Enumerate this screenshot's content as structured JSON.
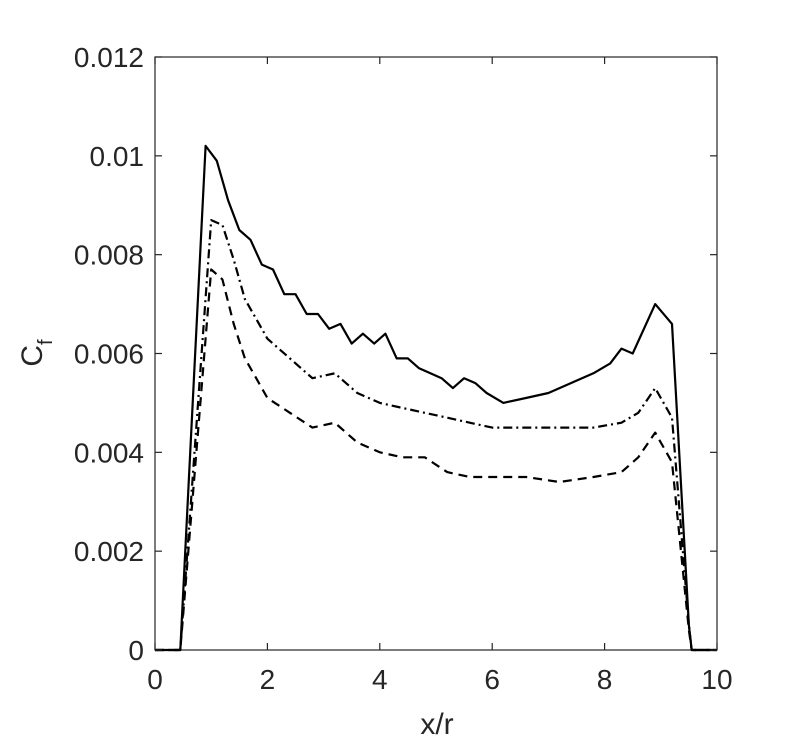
{
  "chart_data": {
    "type": "line",
    "xlabel": "x/r",
    "ylabel_main": "C",
    "ylabel_sub": "f",
    "xlim": [
      0,
      10
    ],
    "ylim": [
      0,
      0.012
    ],
    "x_ticks": [
      0,
      2,
      4,
      6,
      8,
      10
    ],
    "y_ticks": [
      0,
      0.002,
      0.004,
      0.006,
      0.008,
      0.01,
      0.012
    ],
    "x_tick_labels": [
      "0",
      "2",
      "4",
      "6",
      "8",
      "10"
    ],
    "y_tick_labels": [
      "0",
      "0.002",
      "0.004",
      "0.006",
      "0.008",
      "0.01",
      "0.012"
    ],
    "grid": false,
    "legend": "none",
    "series": [
      {
        "style": "solid",
        "color": "#000000",
        "points": [
          [
            0,
            0
          ],
          [
            0.45,
            0
          ],
          [
            0.9,
            0.0102
          ],
          [
            1.1,
            0.0099
          ],
          [
            1.3,
            0.0091
          ],
          [
            1.5,
            0.0085
          ],
          [
            1.7,
            0.0083
          ],
          [
            1.9,
            0.0078
          ],
          [
            2.1,
            0.0077
          ],
          [
            2.3,
            0.0072
          ],
          [
            2.5,
            0.0072
          ],
          [
            2.7,
            0.0068
          ],
          [
            2.9,
            0.0068
          ],
          [
            3.1,
            0.0065
          ],
          [
            3.3,
            0.0066
          ],
          [
            3.5,
            0.0062
          ],
          [
            3.7,
            0.0064
          ],
          [
            3.9,
            0.0062
          ],
          [
            4.1,
            0.0064
          ],
          [
            4.3,
            0.0059
          ],
          [
            4.5,
            0.0059
          ],
          [
            4.7,
            0.0057
          ],
          [
            4.9,
            0.0056
          ],
          [
            5.1,
            0.0055
          ],
          [
            5.3,
            0.0053
          ],
          [
            5.5,
            0.0055
          ],
          [
            5.7,
            0.0054
          ],
          [
            5.9,
            0.0052
          ],
          [
            6.2,
            0.005
          ],
          [
            6.6,
            0.0051
          ],
          [
            7.0,
            0.0052
          ],
          [
            7.4,
            0.0054
          ],
          [
            7.8,
            0.0056
          ],
          [
            8.1,
            0.0058
          ],
          [
            8.3,
            0.0061
          ],
          [
            8.5,
            0.006
          ],
          [
            8.9,
            0.007
          ],
          [
            9.2,
            0.0066
          ],
          [
            9.5,
            0.0005
          ],
          [
            9.55,
            0
          ],
          [
            10,
            0
          ]
        ]
      },
      {
        "style": "dashdot",
        "color": "#000000",
        "points": [
          [
            0,
            0
          ],
          [
            0.45,
            0
          ],
          [
            1.0,
            0.0087
          ],
          [
            1.2,
            0.0086
          ],
          [
            1.4,
            0.0079
          ],
          [
            1.6,
            0.0071
          ],
          [
            1.8,
            0.0067
          ],
          [
            2.0,
            0.0063
          ],
          [
            2.4,
            0.0059
          ],
          [
            2.8,
            0.0055
          ],
          [
            3.2,
            0.0056
          ],
          [
            3.6,
            0.0052
          ],
          [
            4.0,
            0.005
          ],
          [
            4.4,
            0.0049
          ],
          [
            4.8,
            0.0048
          ],
          [
            5.2,
            0.0047
          ],
          [
            5.6,
            0.0046
          ],
          [
            6.0,
            0.0045
          ],
          [
            6.6,
            0.0045
          ],
          [
            7.2,
            0.0045
          ],
          [
            7.8,
            0.0045
          ],
          [
            8.3,
            0.0046
          ],
          [
            8.6,
            0.0048
          ],
          [
            8.9,
            0.0053
          ],
          [
            9.2,
            0.0047
          ],
          [
            9.5,
            0.0005
          ],
          [
            9.55,
            0
          ],
          [
            10,
            0
          ]
        ]
      },
      {
        "style": "dashed",
        "color": "#000000",
        "points": [
          [
            0,
            0
          ],
          [
            0.45,
            0
          ],
          [
            1.0,
            0.0077
          ],
          [
            1.2,
            0.0075
          ],
          [
            1.4,
            0.0066
          ],
          [
            1.6,
            0.0059
          ],
          [
            1.8,
            0.0055
          ],
          [
            2.0,
            0.0051
          ],
          [
            2.4,
            0.0048
          ],
          [
            2.8,
            0.0045
          ],
          [
            3.2,
            0.0046
          ],
          [
            3.6,
            0.0042
          ],
          [
            4.0,
            0.004
          ],
          [
            4.4,
            0.0039
          ],
          [
            4.8,
            0.0039
          ],
          [
            5.2,
            0.0036
          ],
          [
            5.6,
            0.0035
          ],
          [
            6.0,
            0.0035
          ],
          [
            6.6,
            0.0035
          ],
          [
            7.2,
            0.0034
          ],
          [
            7.8,
            0.0035
          ],
          [
            8.3,
            0.0036
          ],
          [
            8.6,
            0.0039
          ],
          [
            8.9,
            0.0044
          ],
          [
            9.2,
            0.0038
          ],
          [
            9.5,
            0.0004
          ],
          [
            9.55,
            0
          ],
          [
            10,
            0
          ]
        ]
      }
    ]
  }
}
